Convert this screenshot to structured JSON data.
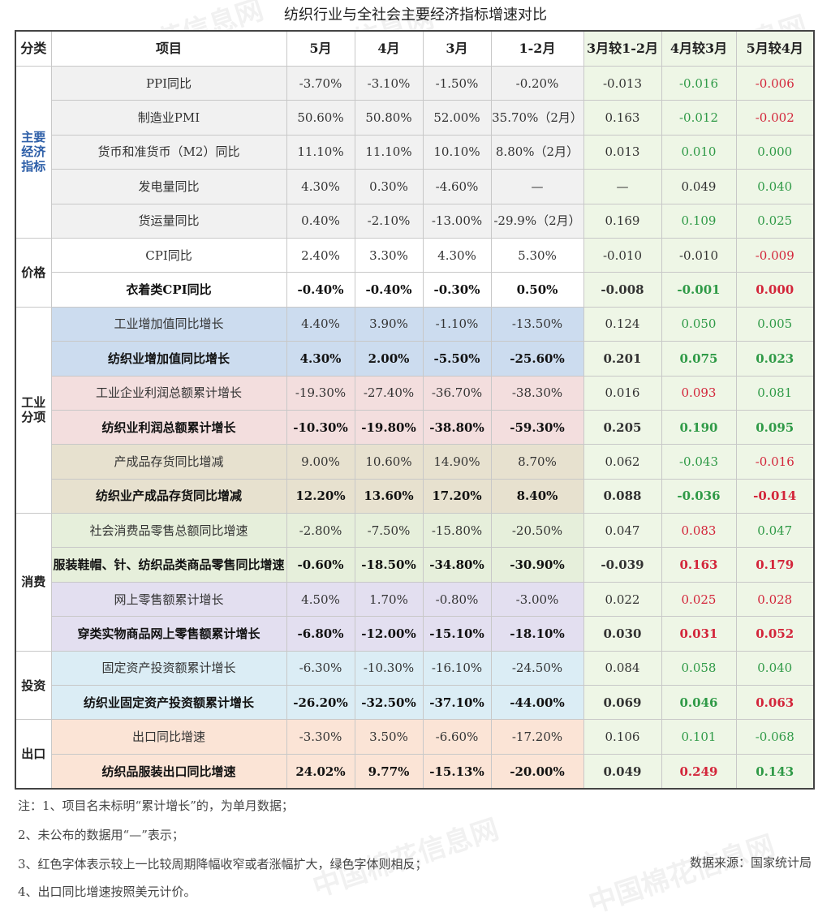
{
  "title": "纺织行业与全社会主要经济指标增速对比",
  "headers": [
    "分类",
    "项目",
    "5月",
    "4月",
    "3月",
    "1-2月",
    "3月较1-2月",
    "4月较3月",
    "5月较4月"
  ],
  "categories": [
    {
      "label": "主要\n经济\n指标"
    },
    {
      "label": "价格"
    },
    {
      "label": "工业\n分项"
    },
    {
      "label": "消费"
    },
    {
      "label": "投资"
    },
    {
      "label": "出口"
    }
  ],
  "rows": [
    {
      "item": "PPI同比",
      "m5": "-3.70%",
      "m4": "-3.10%",
      "m3": "-1.50%",
      "m12": "-0.20%",
      "c1": "-0.013",
      "c2": "-0.016",
      "c3": "-0.006",
      "c2color": "green",
      "c3color": "red"
    },
    {
      "item": "制造业PMI",
      "m5": "50.60%",
      "m4": "50.80%",
      "m3": "52.00%",
      "m12": "35.70%（2月）",
      "c1": "0.163",
      "c2": "-0.012",
      "c3": "-0.002",
      "c2color": "green",
      "c3color": "red"
    },
    {
      "item": "货币和准货币（M2）同比",
      "m5": "11.10%",
      "m4": "11.10%",
      "m3": "10.10%",
      "m12": "8.80%（2月）",
      "c1": "0.013",
      "c2": "0.010",
      "c3": "0.000",
      "c2color": "green",
      "c3color": "green"
    },
    {
      "item": "发电量同比",
      "m5": "4.30%",
      "m4": "0.30%",
      "m3": "-4.60%",
      "m12": "—",
      "c1": "—",
      "c2": "0.049",
      "c3": "0.040",
      "c2color": "",
      "c3color": "green"
    },
    {
      "item": "货运量同比",
      "m5": "0.40%",
      "m4": "-2.10%",
      "m3": "-13.00%",
      "m12": "-29.9%（2月）",
      "c1": "0.169",
      "c2": "0.109",
      "c3": "0.025",
      "c2color": "green",
      "c3color": "green"
    },
    {
      "item": "CPI同比",
      "m5": "2.40%",
      "m4": "3.30%",
      "m3": "4.30%",
      "m12": "5.30%",
      "c1": "-0.010",
      "c2": "-0.010",
      "c3": "-0.009",
      "c2color": "",
      "c3color": "red"
    },
    {
      "item": "衣着类CPI同比",
      "m5": "-0.40%",
      "m4": "-0.40%",
      "m3": "-0.30%",
      "m12": "0.50%",
      "c1": "-0.008",
      "c2": "-0.001",
      "c3": "0.000",
      "c2color": "green",
      "c3color": "red"
    },
    {
      "item": "工业增加值同比增长",
      "m5": "4.40%",
      "m4": "3.90%",
      "m3": "-1.10%",
      "m12": "-13.50%",
      "c1": "0.124",
      "c2": "0.050",
      "c3": "0.005",
      "c2color": "green",
      "c3color": "green"
    },
    {
      "item": "纺织业增加值同比增长",
      "m5": "4.30%",
      "m4": "2.00%",
      "m3": "-5.50%",
      "m12": "-25.60%",
      "c1": "0.201",
      "c2": "0.075",
      "c3": "0.023",
      "c2color": "green",
      "c3color": "green"
    },
    {
      "item": "工业企业利润总额累计增长",
      "m5": "-19.30%",
      "m4": "-27.40%",
      "m3": "-36.70%",
      "m12": "-38.30%",
      "c1": "0.016",
      "c2": "0.093",
      "c3": "0.081",
      "c2color": "red",
      "c3color": "green"
    },
    {
      "item": "纺织业利润总额累计增长",
      "m5": "-10.30%",
      "m4": "-19.80%",
      "m3": "-38.80%",
      "m12": "-59.30%",
      "c1": "0.205",
      "c2": "0.190",
      "c3": "0.095",
      "c2color": "green",
      "c3color": "green"
    },
    {
      "item": "产成品存货同比增减",
      "m5": "9.00%",
      "m4": "10.60%",
      "m3": "14.90%",
      "m12": "8.70%",
      "c1": "0.062",
      "c2": "-0.043",
      "c3": "-0.016",
      "c2color": "green",
      "c3color": "red"
    },
    {
      "item": "纺织业产成品存货同比增减",
      "m5": "12.20%",
      "m4": "13.60%",
      "m3": "17.20%",
      "m12": "8.40%",
      "c1": "0.088",
      "c2": "-0.036",
      "c3": "-0.014",
      "c2color": "green",
      "c3color": "red"
    },
    {
      "item": "社会消费品零售总额同比增速",
      "m5": "-2.80%",
      "m4": "-7.50%",
      "m3": "-15.80%",
      "m12": "-20.50%",
      "c1": "0.047",
      "c2": "0.083",
      "c3": "0.047",
      "c2color": "red",
      "c3color": "green"
    },
    {
      "item": "服装鞋帽、针、纺织品类商品零售同比增速",
      "m5": "-0.60%",
      "m4": "-18.50%",
      "m3": "-34.80%",
      "m12": "-30.90%",
      "c1": "-0.039",
      "c2": "0.163",
      "c3": "0.179",
      "c2color": "red",
      "c3color": "red"
    },
    {
      "item": "网上零售额累计增长",
      "m5": "4.50%",
      "m4": "1.70%",
      "m3": "-0.80%",
      "m12": "-3.00%",
      "c1": "0.022",
      "c2": "0.025",
      "c3": "0.028",
      "c2color": "red",
      "c3color": "red"
    },
    {
      "item": "穿类实物商品网上零售额累计增长",
      "m5": "-6.80%",
      "m4": "-12.00%",
      "m3": "-15.10%",
      "m12": "-18.10%",
      "c1": "0.030",
      "c2": "0.031",
      "c3": "0.052",
      "c2color": "red",
      "c3color": "red"
    },
    {
      "item": "固定资产投资额累计增长",
      "m5": "-6.30%",
      "m4": "-10.30%",
      "m3": "-16.10%",
      "m12": "-24.50%",
      "c1": "0.084",
      "c2": "0.058",
      "c3": "0.040",
      "c2color": "green",
      "c3color": "green"
    },
    {
      "item": "纺织业固定资产投资额累计增长",
      "m5": "-26.20%",
      "m4": "-32.50%",
      "m3": "-37.10%",
      "m12": "-44.00%",
      "c1": "0.069",
      "c2": "0.046",
      "c3": "0.063",
      "c2color": "green",
      "c3color": "red"
    },
    {
      "item": "出口同比增速",
      "m5": "-3.30%",
      "m4": "3.50%",
      "m3": "-6.60%",
      "m12": "-17.20%",
      "c1": "0.106",
      "c2": "0.101",
      "c3": "-0.068",
      "c2color": "green",
      "c3color": "green"
    },
    {
      "item": "纺织品服装出口同比增速",
      "m5": "24.02%",
      "m4": "9.77%",
      "m3": "-15.13%",
      "m12": "-20.00%",
      "c1": "0.049",
      "c2": "0.249",
      "c3": "0.143",
      "c2color": "red",
      "c3color": "green"
    }
  ],
  "notes": [
    "注：1、项目名未标明“累计增长”的，为单月数据；",
    "2、未公布的数据用“—”表示；",
    "3、红色字体表示较上一比较周期降幅收窄或者涨幅扩大，绿色字体则相反；",
    "4、出口同比增速按照美元计价。"
  ],
  "source": "数据来源：国家统计局",
  "watermark": "中国棉花信息网",
  "colors": {
    "red": "#d3253a",
    "green": "#2f9a47",
    "category_blue": "#2e5fa8"
  }
}
